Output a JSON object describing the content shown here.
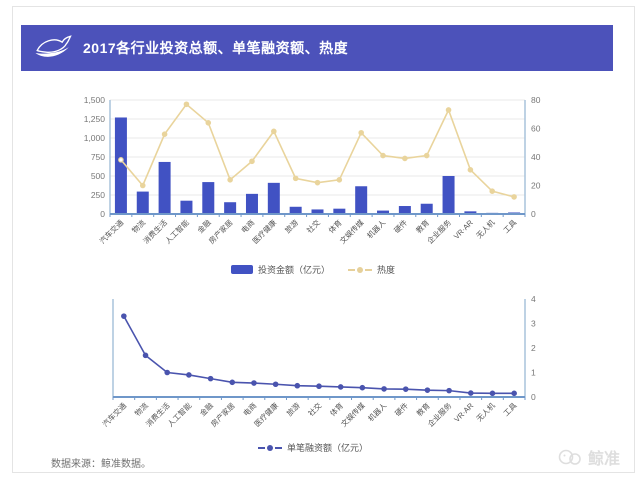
{
  "banner": {
    "title": "2017各行业投资总额、单笔融资额、热度"
  },
  "legend1": {
    "bar_label": "投资金额（亿元）",
    "line_label": "热度"
  },
  "legend2": {
    "line_label": "单笔融资额（亿元）"
  },
  "footer": {
    "source": "数据来源：鲸准数据。"
  },
  "watermark": {
    "text": "鲸准"
  },
  "colors": {
    "banner_bg": "#4c52ba",
    "bar_fill": "#4152c3",
    "heat_line": "#e9d49c",
    "funding_line": "#4a54ae",
    "gridline": "#e9e9e9",
    "axis_line": "#a9c3da",
    "baseline": "#6f97c9",
    "tick_text": "#777777",
    "xlabel_text": "#555555"
  },
  "chart_data": [
    {
      "type": "bar",
      "title": "2017各行业投资总额、单笔融资额、热度（上图）",
      "categories": [
        "汽车交通",
        "物流",
        "消费生活",
        "人工智能",
        "金融",
        "房产家居",
        "电商",
        "医疗健康",
        "旅游",
        "社交",
        "体育",
        "文娱传媒",
        "机器人",
        "硬件",
        "教育",
        "企业服务",
        "VR·AR",
        "无人机",
        "工具"
      ],
      "series": [
        {
          "name": "投资金额（亿元）",
          "type": "bar",
          "axis": "left",
          "values": [
            1270,
            295,
            685,
            175,
            420,
            155,
            265,
            410,
            95,
            60,
            70,
            365,
            45,
            105,
            135,
            500,
            35,
            15,
            20
          ]
        },
        {
          "name": "热度",
          "type": "line",
          "axis": "right",
          "values": [
            38,
            20,
            56,
            77,
            64,
            24,
            37,
            58,
            25,
            22,
            24,
            57,
            41,
            39,
            41,
            73,
            31,
            16,
            12
          ]
        }
      ],
      "left_axis": {
        "min": 0,
        "max": 1500,
        "tick_labels": [
          "0",
          "250",
          "500",
          "750",
          "1,000",
          "1,250",
          "1,500"
        ]
      },
      "right_axis": {
        "min": 0,
        "max": 80,
        "tick_labels": [
          "0",
          "20",
          "40",
          "60",
          "80"
        ]
      },
      "grid": true,
      "legend_position": "bottom"
    },
    {
      "type": "line",
      "title": "单笔融资额（下图）",
      "categories": [
        "汽车交通",
        "物流",
        "消费生活",
        "人工智能",
        "金融",
        "房产家居",
        "电商",
        "医疗健康",
        "旅游",
        "社交",
        "体育",
        "文娱传媒",
        "机器人",
        "硬件",
        "教育",
        "企业服务",
        "VR·AR",
        "无人机",
        "工具"
      ],
      "series": [
        {
          "name": "单笔融资额（亿元）",
          "type": "line",
          "axis": "right",
          "values": [
            3.3,
            1.7,
            1.0,
            0.9,
            0.75,
            0.6,
            0.57,
            0.52,
            0.46,
            0.44,
            0.41,
            0.38,
            0.33,
            0.32,
            0.28,
            0.26,
            0.16,
            0.15,
            0.15
          ]
        }
      ],
      "right_axis": {
        "min": 0,
        "max": 4,
        "tick_labels": [
          "0",
          "1",
          "2",
          "3",
          "4"
        ]
      },
      "grid": false,
      "legend_position": "bottom"
    }
  ]
}
